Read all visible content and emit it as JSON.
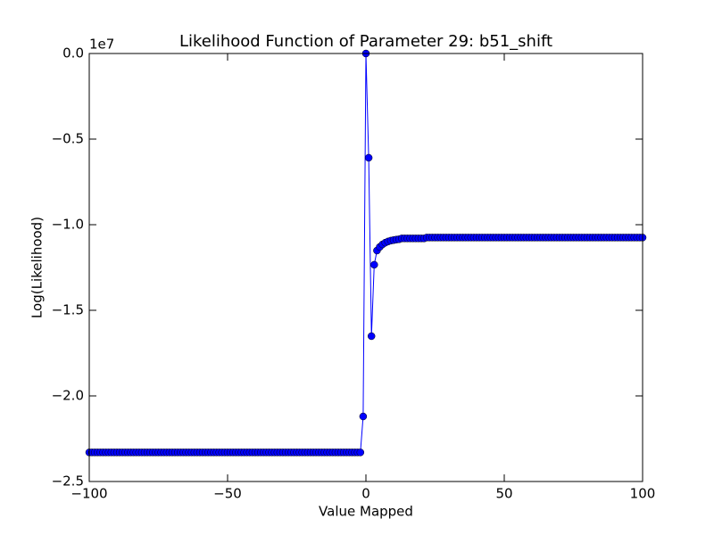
{
  "chart_data": {
    "type": "line",
    "title": "Likelihood Function of Parameter 29: b51_shift",
    "x_label": "Value Mapped",
    "y_label": "Log(Likelihood)",
    "y_offset_label": "1e7",
    "x": [
      -100,
      -99,
      -98,
      -97,
      -96,
      -95,
      -94,
      -93,
      -92,
      -91,
      -90,
      -89,
      -88,
      -87,
      -86,
      -85,
      -84,
      -83,
      -82,
      -81,
      -80,
      -79,
      -78,
      -77,
      -76,
      -75,
      -74,
      -73,
      -72,
      -71,
      -70,
      -69,
      -68,
      -67,
      -66,
      -65,
      -64,
      -63,
      -62,
      -61,
      -60,
      -59,
      -58,
      -57,
      -56,
      -55,
      -54,
      -53,
      -52,
      -51,
      -50,
      -49,
      -48,
      -47,
      -46,
      -45,
      -44,
      -43,
      -42,
      -41,
      -40,
      -39,
      -38,
      -37,
      -36,
      -35,
      -34,
      -33,
      -32,
      -31,
      -30,
      -29,
      -28,
      -27,
      -26,
      -25,
      -24,
      -23,
      -22,
      -21,
      -20,
      -19,
      -18,
      -17,
      -16,
      -15,
      -14,
      -13,
      -12,
      -11,
      -10,
      -9,
      -8,
      -7,
      -6,
      -5,
      -4,
      -3,
      -2,
      -1,
      0,
      1,
      2,
      3,
      4,
      5,
      6,
      7,
      8,
      9,
      10,
      11,
      12,
      13,
      14,
      15,
      16,
      17,
      18,
      19,
      20,
      21,
      22,
      23,
      24,
      25,
      26,
      27,
      28,
      29,
      30,
      31,
      32,
      33,
      34,
      35,
      36,
      37,
      38,
      39,
      40,
      41,
      42,
      43,
      44,
      45,
      46,
      47,
      48,
      49,
      50,
      51,
      52,
      53,
      54,
      55,
      56,
      57,
      58,
      59,
      60,
      61,
      62,
      63,
      64,
      65,
      66,
      67,
      68,
      69,
      70,
      71,
      72,
      73,
      74,
      75,
      76,
      77,
      78,
      79,
      80,
      81,
      82,
      83,
      84,
      85,
      86,
      87,
      88,
      89,
      90,
      91,
      92,
      93,
      94,
      95,
      96,
      97,
      98,
      99,
      100
    ],
    "series": [
      {
        "name": "likelihood",
        "color": "#0000ff",
        "values": [
          -2.33,
          -2.33,
          -2.33,
          -2.33,
          -2.33,
          -2.33,
          -2.33,
          -2.33,
          -2.33,
          -2.33,
          -2.33,
          -2.33,
          -2.33,
          -2.33,
          -2.33,
          -2.33,
          -2.33,
          -2.33,
          -2.33,
          -2.33,
          -2.33,
          -2.33,
          -2.33,
          -2.33,
          -2.33,
          -2.33,
          -2.33,
          -2.33,
          -2.33,
          -2.33,
          -2.33,
          -2.33,
          -2.33,
          -2.33,
          -2.33,
          -2.33,
          -2.33,
          -2.33,
          -2.33,
          -2.33,
          -2.33,
          -2.33,
          -2.33,
          -2.33,
          -2.33,
          -2.33,
          -2.33,
          -2.33,
          -2.33,
          -2.33,
          -2.33,
          -2.33,
          -2.33,
          -2.33,
          -2.33,
          -2.33,
          -2.33,
          -2.33,
          -2.33,
          -2.33,
          -2.33,
          -2.33,
          -2.33,
          -2.33,
          -2.33,
          -2.33,
          -2.33,
          -2.33,
          -2.33,
          -2.33,
          -2.33,
          -2.33,
          -2.33,
          -2.33,
          -2.33,
          -2.33,
          -2.33,
          -2.33,
          -2.33,
          -2.33,
          -2.33,
          -2.33,
          -2.33,
          -2.33,
          -2.33,
          -2.33,
          -2.33,
          -2.33,
          -2.33,
          -2.33,
          -2.33,
          -2.33,
          -2.33,
          -2.33,
          -2.33,
          -2.33,
          -2.33,
          -2.33,
          -2.33,
          -2.12,
          0,
          -0.609,
          -1.651,
          -1.234,
          -1.151,
          -1.13,
          -1.115,
          -1.105,
          -1.098,
          -1.093,
          -1.09,
          -1.087,
          -1.085,
          -1.08,
          -1.08,
          -1.08,
          -1.08,
          -1.08,
          -1.08,
          -1.08,
          -1.08,
          -1.08,
          -1.075,
          -1.075,
          -1.075,
          -1.075,
          -1.075,
          -1.075,
          -1.075,
          -1.075,
          -1.075,
          -1.075,
          -1.075,
          -1.075,
          -1.075,
          -1.075,
          -1.075,
          -1.075,
          -1.075,
          -1.075,
          -1.075,
          -1.075,
          -1.075,
          -1.075,
          -1.075,
          -1.075,
          -1.075,
          -1.075,
          -1.075,
          -1.075,
          -1.075,
          -1.075,
          -1.075,
          -1.075,
          -1.075,
          -1.075,
          -1.075,
          -1.075,
          -1.075,
          -1.075,
          -1.075,
          -1.075,
          -1.075,
          -1.075,
          -1.075,
          -1.075,
          -1.075,
          -1.075,
          -1.075,
          -1.075,
          -1.075,
          -1.075,
          -1.075,
          -1.075,
          -1.075,
          -1.075,
          -1.075,
          -1.075,
          -1.075,
          -1.075,
          -1.075,
          -1.075,
          -1.075,
          -1.075,
          -1.075,
          -1.075,
          -1.075,
          -1.075,
          -1.075,
          -1.075,
          -1.075,
          -1.075,
          -1.075,
          -1.075,
          -1.075,
          -1.075,
          -1.075,
          -1.075,
          -1.075,
          -1.075,
          -1.075
        ]
      }
    ],
    "xlim": [
      -100,
      100
    ],
    "xticks": [
      {
        "value": -100,
        "label": "−100"
      },
      {
        "value": -50,
        "label": "−50"
      },
      0,
      50,
      100
    ],
    "ylim": [
      -2.5,
      0
    ],
    "yticks": [
      {
        "value": 0,
        "label": "0.0"
      },
      {
        "value": -0.5,
        "label": "−0.5"
      },
      {
        "value": -1,
        "label": "−1.0"
      },
      {
        "value": -1.5,
        "label": "−1.5"
      },
      {
        "value": -2,
        "label": "−2.0"
      },
      {
        "value": -2.5,
        "label": "−2.5"
      }
    ],
    "grid": false
  }
}
